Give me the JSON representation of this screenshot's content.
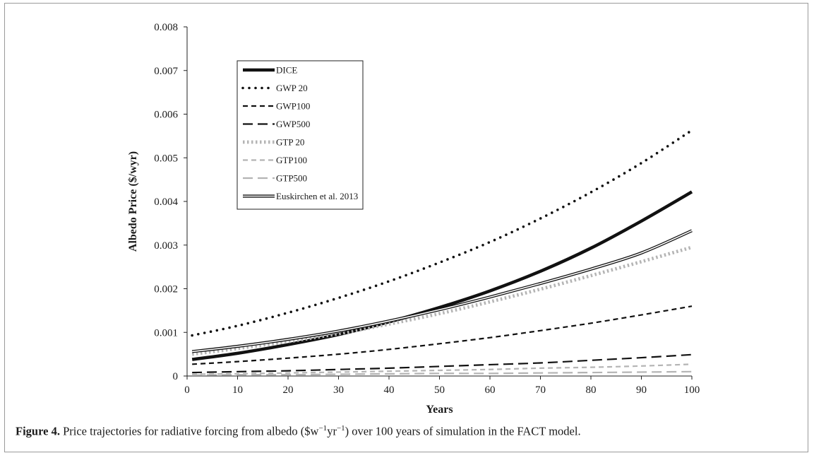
{
  "chart_data": {
    "type": "line",
    "xlabel": "Years",
    "ylabel": "Albedo Price ($/wyr)",
    "xlim": [
      0,
      100
    ],
    "ylim": [
      0,
      0.008
    ],
    "x_ticks": [
      "0",
      "10",
      "20",
      "30",
      "40",
      "50",
      "60",
      "70",
      "80",
      "90",
      "100"
    ],
    "y_ticks": [
      "0",
      "0.001",
      "0.002",
      "0.003",
      "0.004",
      "0.005",
      "0.006",
      "0.007",
      "0.008"
    ],
    "grid": false,
    "legend_position": "top-left",
    "x": [
      1,
      10,
      20,
      30,
      40,
      50,
      60,
      70,
      80,
      90,
      100
    ],
    "series": [
      {
        "name": "DICE",
        "style": "solid-thick",
        "color": "#111111",
        "values": [
          0.00038,
          0.00052,
          0.00072,
          0.00095,
          0.00124,
          0.00157,
          0.00195,
          0.0024,
          0.00293,
          0.00355,
          0.00422
        ]
      },
      {
        "name": "GWP 20",
        "style": "dotted",
        "color": "#111111",
        "values": [
          0.00093,
          0.00115,
          0.00145,
          0.00179,
          0.00217,
          0.0026,
          0.00307,
          0.00361,
          0.00421,
          0.00488,
          0.00563
        ]
      },
      {
        "name": "GWP100",
        "style": "short-dash",
        "color": "#111111",
        "values": [
          0.00027,
          0.00033,
          0.00041,
          0.0005,
          0.00061,
          0.00074,
          0.00088,
          0.00104,
          0.00121,
          0.0014,
          0.0016
        ]
      },
      {
        "name": "GWP500",
        "style": "long-dash",
        "color": "#111111",
        "values": [
          8e-05,
          0.0001,
          0.00012,
          0.00015,
          0.00018,
          0.00022,
          0.00026,
          0.0003,
          0.00036,
          0.00042,
          0.00049
        ]
      },
      {
        "name": "GTP 20",
        "style": "dotted-thick",
        "color": "#b4b4b4",
        "values": [
          0.0005,
          0.00063,
          0.00079,
          0.00097,
          0.00119,
          0.00143,
          0.0017,
          0.00199,
          0.0023,
          0.00262,
          0.00295
        ]
      },
      {
        "name": "GTP100",
        "style": "short-dash",
        "color": "#b4b4b4",
        "values": [
          4e-05,
          5e-05,
          7e-05,
          9e-05,
          0.00011,
          0.00013,
          0.00015,
          0.00018,
          0.0002,
          0.00023,
          0.00027
        ]
      },
      {
        "name": "GTP500",
        "style": "long-dash",
        "color": "#b4b4b4",
        "values": [
          2e-05,
          3e-05,
          3e-05,
          4e-05,
          5e-05,
          6e-05,
          6e-05,
          7e-05,
          8e-05,
          9e-05,
          0.0001
        ]
      },
      {
        "name": "Euskirchen et al. 2013",
        "style": "double",
        "color": "#111111",
        "values": [
          0.00056,
          0.00068,
          0.00084,
          0.00103,
          0.00126,
          0.00152,
          0.00181,
          0.00212,
          0.00245,
          0.00282,
          0.00333
        ]
      }
    ]
  },
  "caption": {
    "label": "Figure 4.",
    "text_before": " Price trajectories for radiative forcing from albedo ($w",
    "sup1": "−1",
    "text_mid": "yr",
    "sup2": "−1",
    "text_after": ") over 100 years of simulation in the FACT model."
  }
}
